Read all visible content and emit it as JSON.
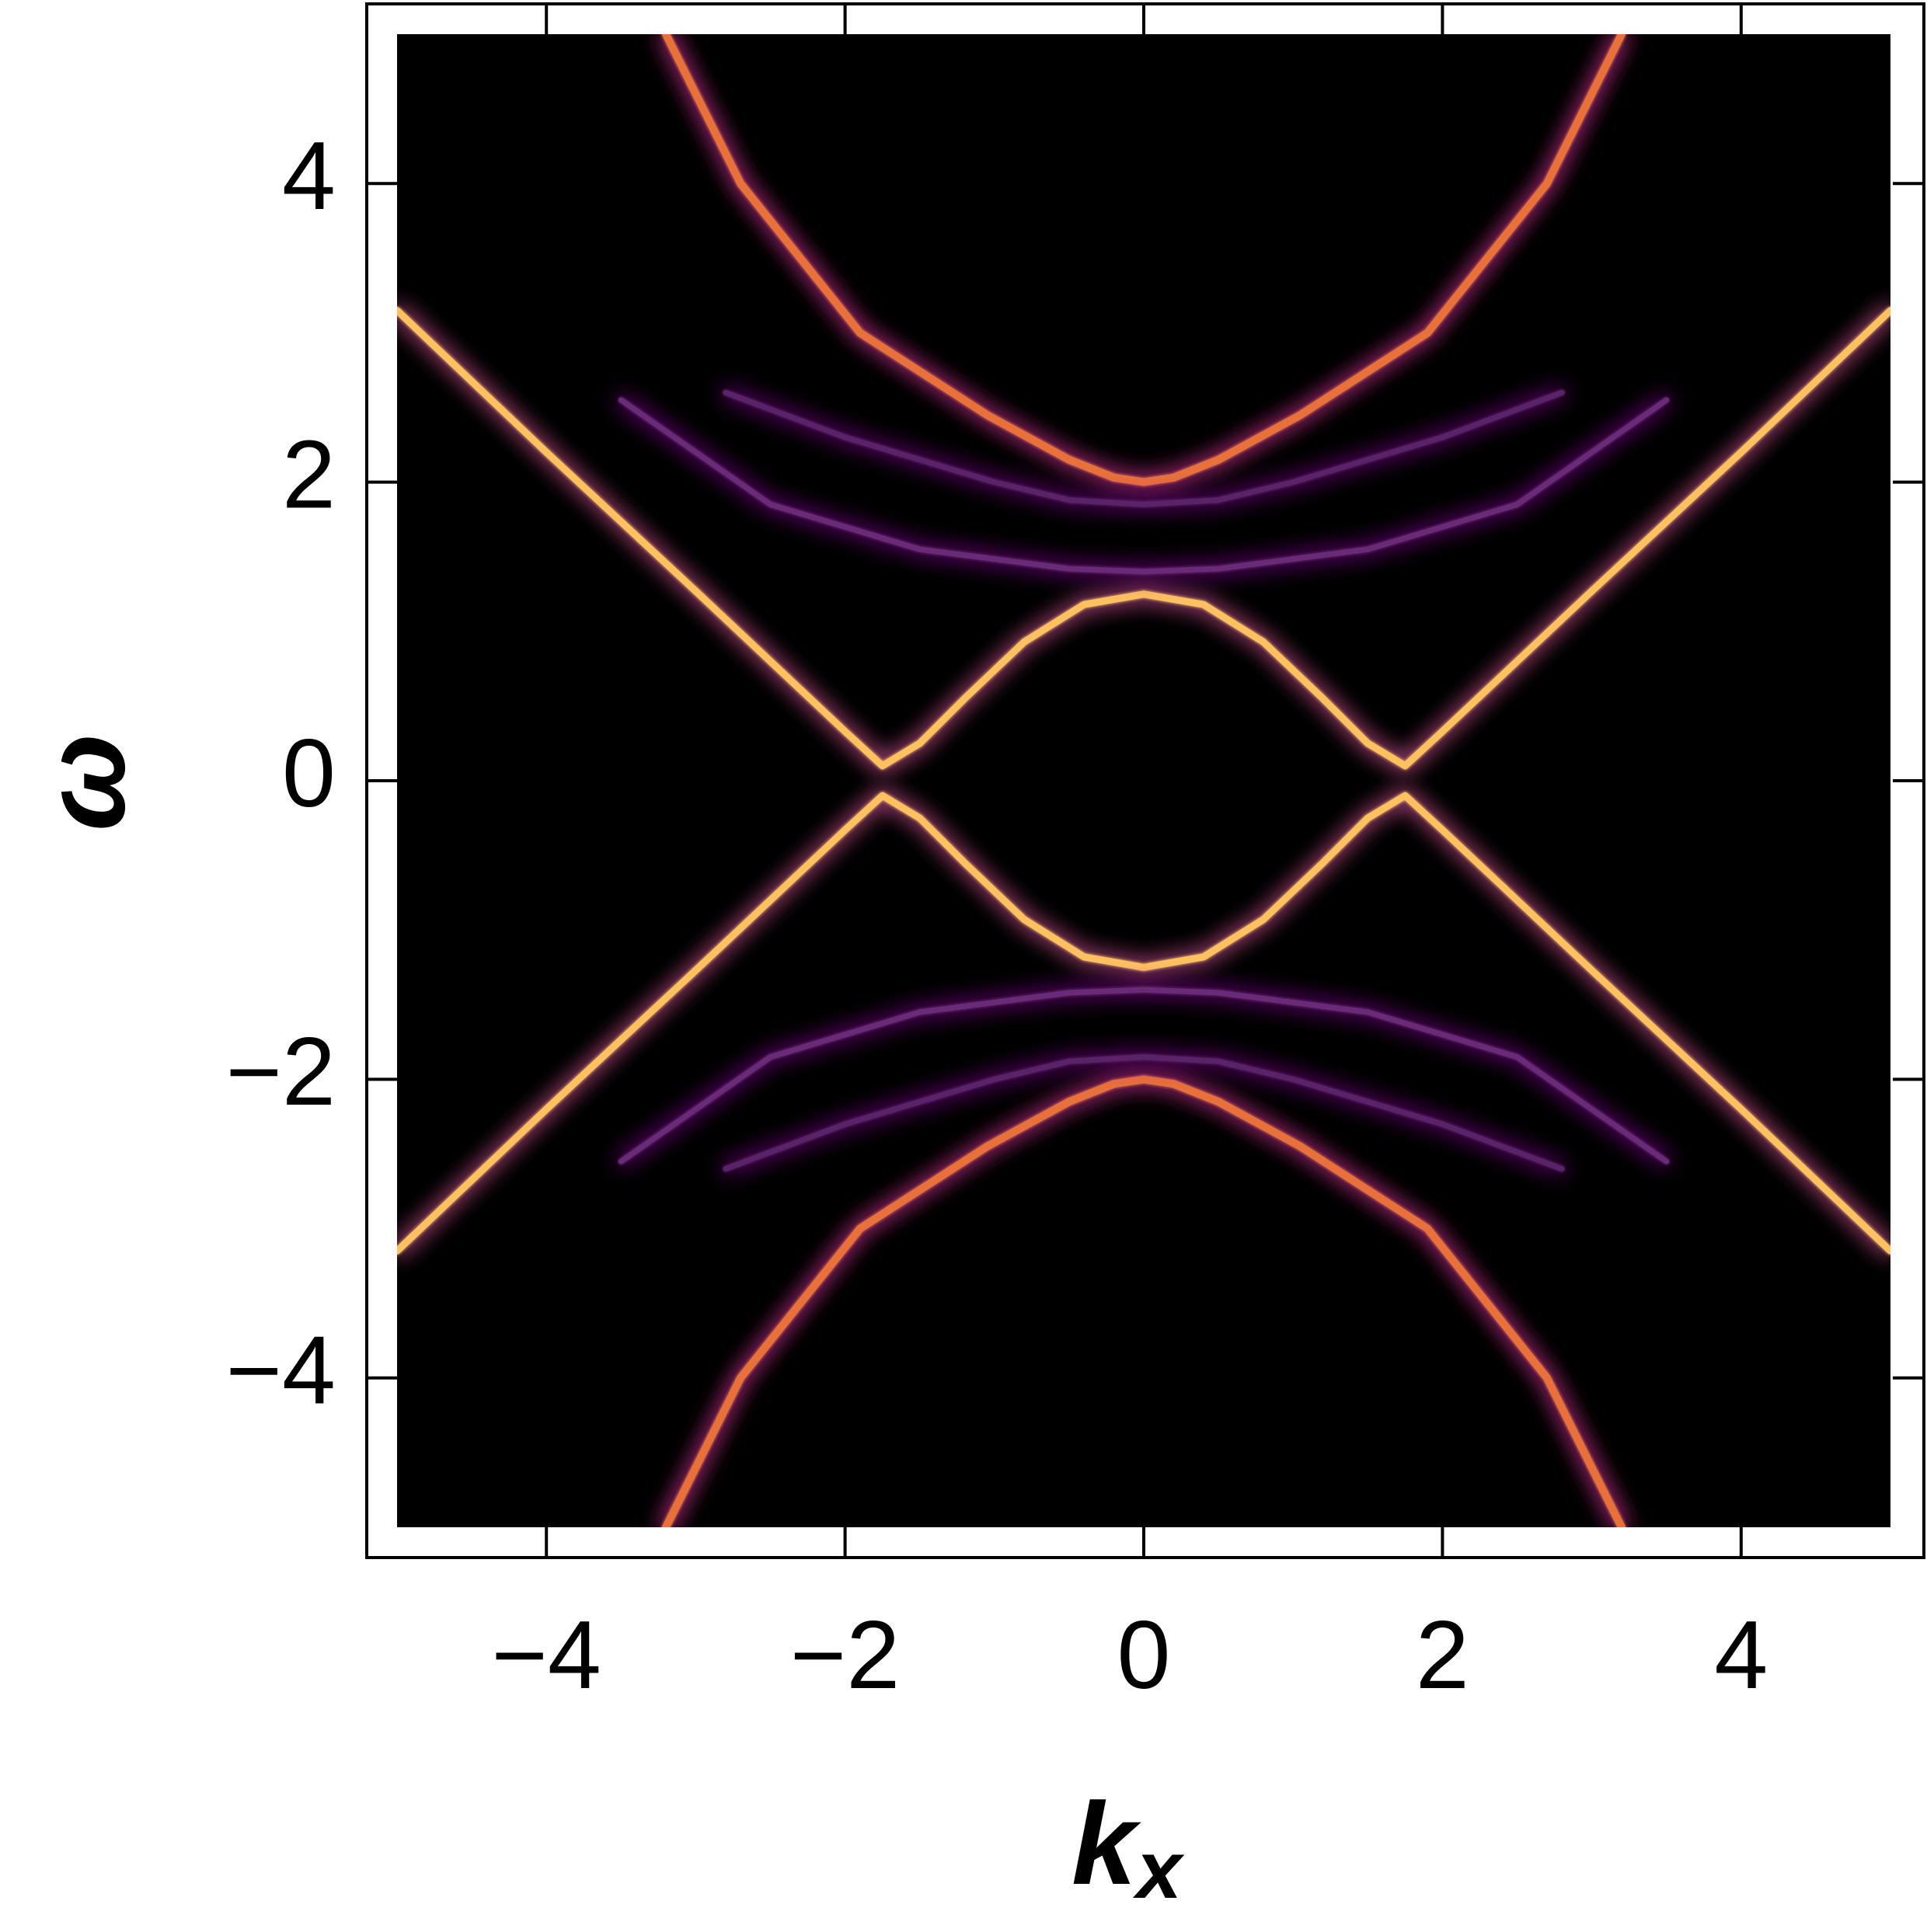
{
  "chart_data": {
    "type": "line",
    "x_label": "k",
    "x_label_sub": "x",
    "y_label": "ω",
    "xlim": [
      -5,
      5
    ],
    "ylim": [
      -5,
      5
    ],
    "xticks": [
      {
        "value": -4,
        "label": "−4"
      },
      {
        "value": -2,
        "label": "−2"
      },
      0,
      2,
      4
    ],
    "yticks": [
      {
        "value": -4,
        "label": "−4"
      },
      {
        "value": -2,
        "label": "−2"
      },
      0,
      2,
      4
    ],
    "background": "#000000",
    "series": [
      {
        "color": "#ffc060",
        "x": [
          -5,
          -4,
          -3,
          -2,
          -1.75,
          -1.5,
          -1.2,
          -0.8,
          -0.4,
          0,
          0.4,
          0.8,
          1.2,
          1.5,
          1.75,
          2,
          3,
          4,
          5
        ],
        "values": [
          3.15,
          2.2,
          1.27,
          0.33,
          0.1,
          0.25,
          0.55,
          0.93,
          1.18,
          1.25,
          1.18,
          0.93,
          0.55,
          0.25,
          0.1,
          0.33,
          1.27,
          2.2,
          3.15
        ]
      },
      {
        "color": "#ffc060",
        "x": [
          -5,
          -4,
          -3,
          -2,
          -1.75,
          -1.5,
          -1.2,
          -0.8,
          -0.4,
          0,
          0.4,
          0.8,
          1.2,
          1.5,
          1.75,
          2,
          3,
          4,
          5
        ],
        "values": [
          -3.15,
          -2.2,
          -1.27,
          -0.33,
          -0.1,
          -0.25,
          -0.55,
          -0.93,
          -1.18,
          -1.25,
          -1.18,
          -0.93,
          -0.55,
          -0.25,
          -0.1,
          -0.33,
          -1.27,
          -2.2,
          -3.15
        ]
      },
      {
        "color": "#e8703a",
        "x": [
          -3.2,
          -2.7,
          -1.9,
          -1.05,
          -0.5,
          -0.2,
          0,
          0.2,
          0.5,
          1.05,
          1.9,
          2.7,
          3.2
        ],
        "values": [
          5,
          4,
          3,
          2.45,
          2.15,
          2.03,
          2,
          2.03,
          2.15,
          2.45,
          3,
          4,
          5
        ]
      },
      {
        "color": "#e8703a",
        "x": [
          -3.2,
          -2.7,
          -1.9,
          -1.05,
          -0.5,
          -0.2,
          0,
          0.2,
          0.5,
          1.05,
          1.9,
          2.7,
          3.2
        ],
        "values": [
          -5,
          -4,
          -3,
          -2.45,
          -2.15,
          -2.03,
          -2,
          -2.03,
          -2.15,
          -2.45,
          -3,
          -4,
          -5
        ]
      },
      {
        "color": "#6a2a78",
        "x": [
          -3.5,
          -2.5,
          -1.5,
          -0.5,
          0,
          0.5,
          1.5,
          2.5,
          3.5
        ],
        "values": [
          2.55,
          1.85,
          1.55,
          1.42,
          1.4,
          1.42,
          1.55,
          1.85,
          2.55
        ]
      },
      {
        "color": "#6a2a78",
        "x": [
          -3.5,
          -2.5,
          -1.5,
          -0.5,
          0,
          0.5,
          1.5,
          2.5,
          3.5
        ],
        "values": [
          -2.55,
          -1.85,
          -1.55,
          -1.42,
          -1.4,
          -1.42,
          -1.55,
          -1.85,
          -2.55
        ]
      },
      {
        "color": "#5a2468",
        "x": [
          -2.8,
          -2,
          -1,
          -0.5,
          0,
          0.5,
          1,
          2,
          2.8
        ],
        "values": [
          2.6,
          2.3,
          2.0,
          1.88,
          1.85,
          1.88,
          2.0,
          2.3,
          2.6
        ]
      },
      {
        "color": "#5a2468",
        "x": [
          -2.8,
          -2,
          -1,
          -0.5,
          0,
          0.5,
          1,
          2,
          2.8
        ],
        "values": [
          -2.6,
          -2.3,
          -2.0,
          -1.88,
          -1.85,
          -1.88,
          -2.0,
          -2.3,
          -2.6
        ]
      }
    ]
  }
}
